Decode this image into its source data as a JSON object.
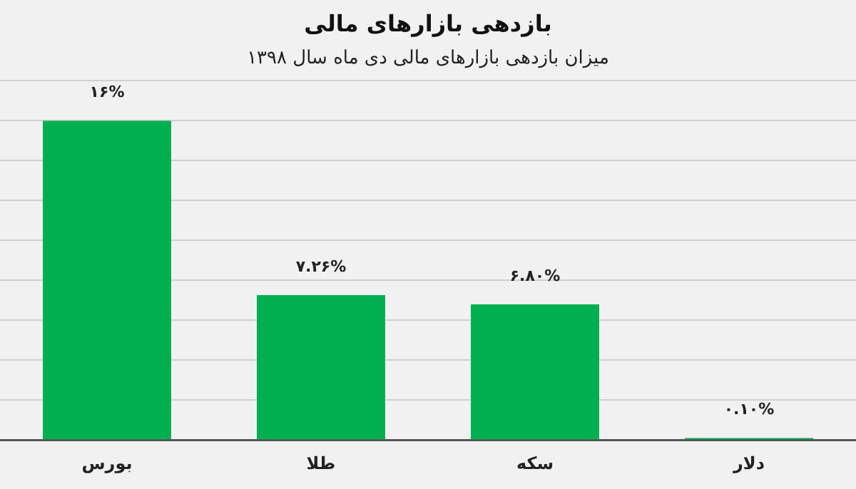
{
  "chart_data": {
    "type": "bar",
    "title": "بازدهی بازارهای مالی",
    "subtitle": "میزان بازدهی بازارهای مالی دی ماه سال ۱۳۹۸",
    "categories": [
      "بورس",
      "طلا",
      "سکه",
      "دلار"
    ],
    "values": [
      16,
      7.26,
      6.8,
      0.1
    ],
    "value_labels": [
      "۱۶%",
      "۷.۲۶%",
      "۶.۸۰%",
      "۰.۱۰%"
    ],
    "color": "#00b050",
    "ylim": [
      0,
      18
    ],
    "yticks": [
      {
        "value": 0,
        "label": null
      },
      {
        "value": 2,
        "label": null
      },
      {
        "value": 4,
        "label": null
      },
      {
        "value": 6,
        "label": null
      },
      {
        "value": 8,
        "label": null
      },
      {
        "value": 10,
        "label": null
      },
      {
        "value": 12,
        "label": null
      },
      {
        "value": 14,
        "label": null
      },
      {
        "value": 16,
        "label": null
      },
      {
        "value": 18,
        "label": null
      }
    ],
    "grid": "y",
    "legend": false,
    "tick_labels": "x"
  }
}
